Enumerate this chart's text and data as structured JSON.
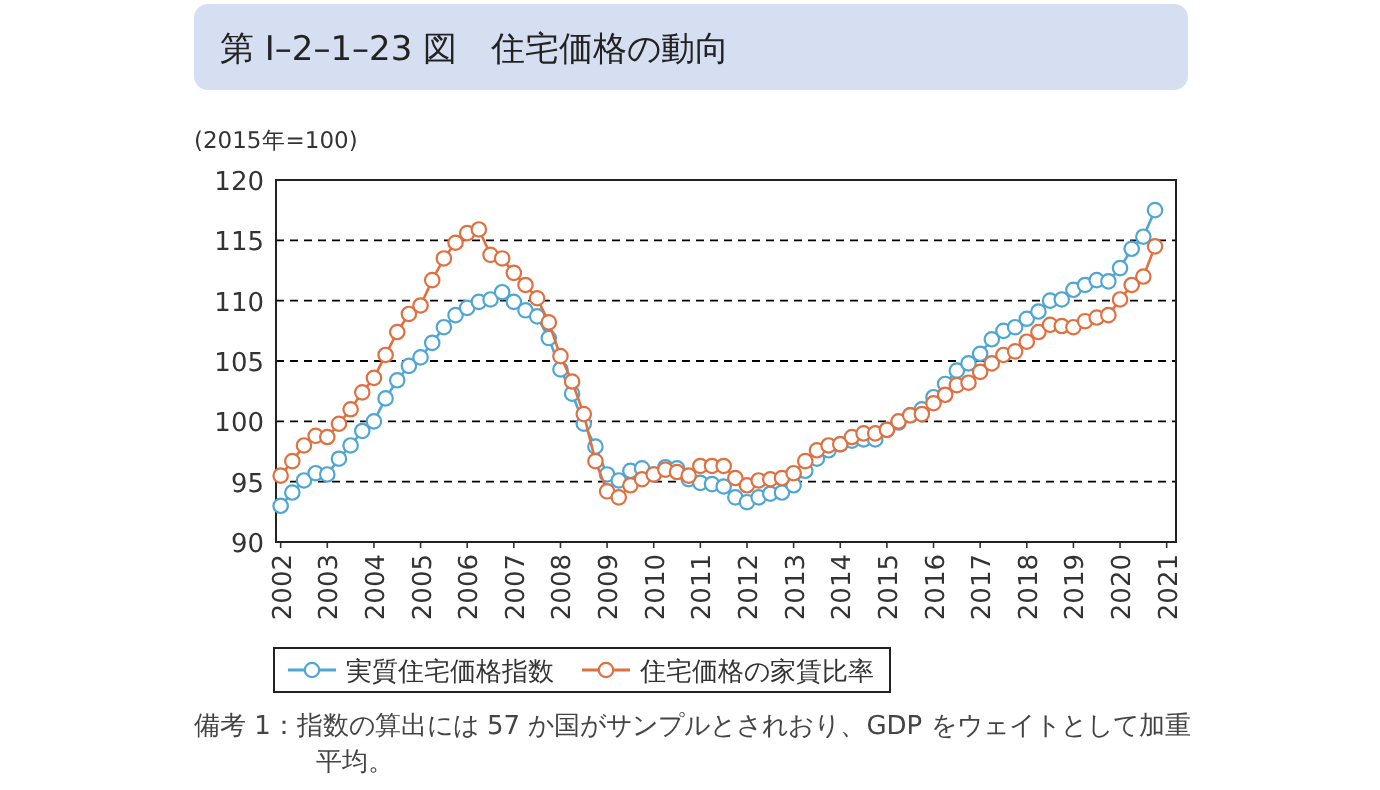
{
  "chart_data": {
    "type": "line",
    "title": "第 Ⅰ–2–1–23 図　住宅価格の動向",
    "ylabel": "(2015年=100)",
    "xlim": [
      2001.9,
      2021.2
    ],
    "xticks": [
      2002,
      2003,
      2004,
      2005,
      2006,
      2007,
      2008,
      2009,
      2010,
      2011,
      2012,
      2013,
      2014,
      2015,
      2016,
      2017,
      2018,
      2019,
      2020,
      2021
    ],
    "ylim": [
      90,
      120
    ],
    "yticks": [
      90,
      95,
      100,
      105,
      110,
      115,
      120
    ],
    "grid": "y",
    "legend": "bottom",
    "marker": "circle",
    "line_style": "solid",
    "x": [
      2002,
      2002.25,
      2002.5,
      2002.75,
      2003,
      2003.25,
      2003.5,
      2003.75,
      2004,
      2004.25,
      2004.5,
      2004.75,
      2005,
      2005.25,
      2005.5,
      2005.75,
      2006,
      2006.25,
      2006.5,
      2006.75,
      2007,
      2007.25,
      2007.5,
      2007.75,
      2008,
      2008.25,
      2008.5,
      2008.75,
      2009,
      2009.25,
      2009.5,
      2009.75,
      2010,
      2010.25,
      2010.5,
      2010.75,
      2011,
      2011.25,
      2011.5,
      2011.75,
      2012,
      2012.25,
      2012.5,
      2012.75,
      2013,
      2013.25,
      2013.5,
      2013.75,
      2014,
      2014.25,
      2014.5,
      2014.75,
      2015,
      2015.25,
      2015.5,
      2015.75,
      2016,
      2016.25,
      2016.5,
      2016.75,
      2017,
      2017.25,
      2017.5,
      2017.75,
      2018,
      2018.25,
      2018.5,
      2018.75,
      2019,
      2019.25,
      2019.5,
      2019.75,
      2020,
      2020.25,
      2020.5,
      2020.75
    ],
    "series": [
      {
        "name": "実質住宅価格指数",
        "color": "#4fa6d3",
        "values": [
          93.0,
          94.1,
          95.1,
          95.7,
          95.6,
          96.9,
          98.0,
          99.2,
          100.0,
          101.9,
          103.4,
          104.6,
          105.3,
          106.5,
          107.8,
          108.8,
          109.4,
          109.9,
          110.1,
          110.7,
          109.9,
          109.2,
          108.7,
          106.9,
          104.3,
          102.3,
          99.8,
          97.9,
          95.6,
          95.1,
          95.9,
          96.1,
          95.6,
          96.2,
          96.1,
          95.2,
          94.9,
          94.8,
          94.6,
          93.7,
          93.3,
          93.7,
          94.0,
          94.1,
          94.7,
          95.9,
          96.9,
          97.6,
          98.1,
          98.4,
          98.5,
          98.5,
          99.3,
          99.9,
          100.5,
          101.0,
          102.0,
          103.1,
          104.2,
          104.8,
          105.6,
          106.8,
          107.5,
          107.8,
          108.5,
          109.1,
          110.0,
          110.1,
          110.9,
          111.3,
          111.7,
          111.6,
          112.7,
          114.3,
          115.3,
          117.5
        ]
      },
      {
        "name": "住宅価格の家賃比率",
        "color": "#e07040",
        "values": [
          95.5,
          96.7,
          98.0,
          98.8,
          98.7,
          99.8,
          101.0,
          102.4,
          103.6,
          105.5,
          107.4,
          108.9,
          109.6,
          111.7,
          113.5,
          114.8,
          115.6,
          115.9,
          113.8,
          113.5,
          112.3,
          111.3,
          110.2,
          108.2,
          105.4,
          103.3,
          100.6,
          96.7,
          94.2,
          93.7,
          94.7,
          95.2,
          95.6,
          96.0,
          95.8,
          95.5,
          96.3,
          96.3,
          96.3,
          95.3,
          94.7,
          95.1,
          95.2,
          95.3,
          95.7,
          96.7,
          97.6,
          98.0,
          98.1,
          98.7,
          99.0,
          99.0,
          99.3,
          100.0,
          100.5,
          100.6,
          101.5,
          102.2,
          103.0,
          103.2,
          104.1,
          104.8,
          105.5,
          105.8,
          106.6,
          107.4,
          108.0,
          107.9,
          107.8,
          108.3,
          108.6,
          108.8,
          110.1,
          111.3,
          112.0,
          114.5
        ]
      }
    ],
    "annotations": [
      "備考 1：指数の算出には 57 か国がサンプルとされおり、GDP をウェイトとして加重平均。"
    ]
  }
}
